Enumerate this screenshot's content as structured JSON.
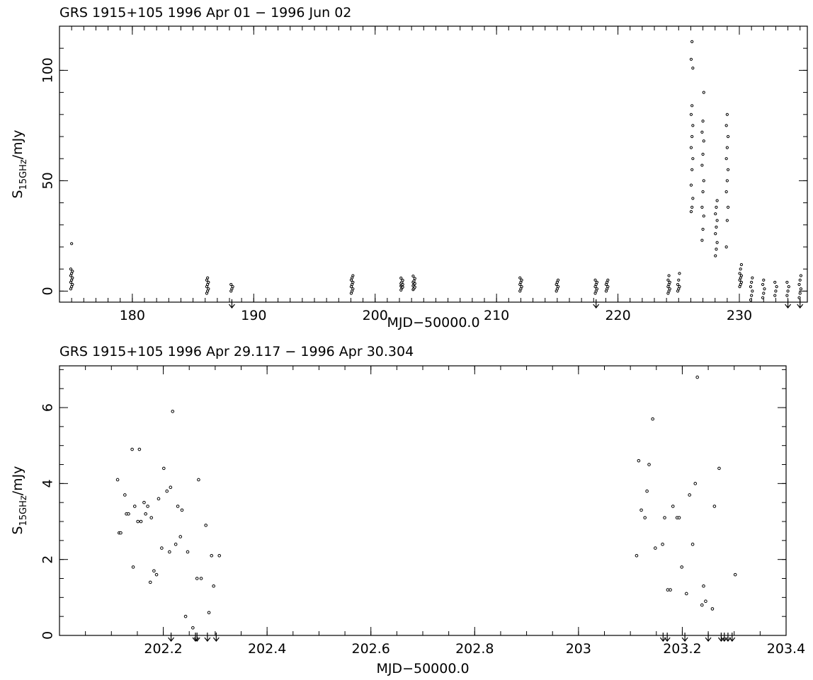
{
  "chart_data": [
    {
      "type": "scatter",
      "title": "GRS 1915+105  1996 Apr 01 − 1996 Jun 02",
      "xlabel": "MJD−50000.0",
      "ylabel_main": "S",
      "ylabel_sub": "15GHz",
      "ylabel_unit": "/mJy",
      "xlim": [
        174,
        235.6
      ],
      "ylim": [
        -5,
        120
      ],
      "xticks": [
        180,
        190,
        200,
        210,
        220,
        230
      ],
      "xticklabels": [
        "180",
        "190",
        "200",
        "210",
        "220",
        "230"
      ],
      "yticks": [
        0,
        50,
        100
      ],
      "yticklabels": [
        "0",
        "50",
        "100"
      ],
      "clusters": [
        {
          "x": 175.0,
          "values": [
            1,
            2,
            3,
            4,
            5,
            6,
            7,
            8,
            9,
            10,
            21.5
          ]
        },
        {
          "x": 186.2,
          "values": [
            -1,
            0,
            1,
            2,
            3,
            4,
            5,
            6
          ]
        },
        {
          "x": 188.2,
          "values": [
            0,
            1,
            2,
            3
          ]
        },
        {
          "x": 198.1,
          "values": [
            -1,
            0,
            1,
            2,
            3,
            4,
            5,
            6,
            7
          ]
        },
        {
          "x": 202.2,
          "values": [
            0.5,
            1.4,
            1.8,
            2.3,
            2.7,
            3.0,
            3.4,
            4.1,
            4.9,
            5.9
          ]
        },
        {
          "x": 203.2,
          "values": [
            0.7,
            1.2,
            1.8,
            2.4,
            3.1,
            3.4,
            4.0,
            4.6,
            5.7,
            6.8
          ]
        },
        {
          "x": 212.0,
          "values": [
            0,
            1,
            2,
            3,
            4,
            5,
            6
          ]
        },
        {
          "x": 215.0,
          "values": [
            0,
            1,
            2,
            3,
            4,
            5
          ]
        },
        {
          "x": 218.2,
          "values": [
            -1,
            0,
            1,
            2,
            3,
            4,
            5
          ]
        },
        {
          "x": 219.1,
          "values": [
            0,
            1,
            2,
            3,
            4,
            5
          ]
        },
        {
          "x": 224.2,
          "values": [
            -1,
            0,
            1,
            2,
            3,
            4,
            5,
            7
          ]
        },
        {
          "x": 225.0,
          "values": [
            0,
            1,
            2,
            3,
            5,
            8
          ]
        },
        {
          "x": 226.1,
          "values": [
            36,
            38,
            42,
            48,
            55,
            60,
            65,
            70,
            75,
            80,
            84,
            101,
            105,
            113
          ]
        },
        {
          "x": 227.0,
          "values": [
            23,
            28,
            34,
            38,
            45,
            50,
            57,
            62,
            68,
            72,
            77,
            90
          ]
        },
        {
          "x": 228.1,
          "values": [
            16,
            19,
            22,
            26,
            29,
            32,
            35,
            38,
            41
          ]
        },
        {
          "x": 229.0,
          "values": [
            20,
            32,
            38,
            45,
            50,
            55,
            60,
            65,
            70,
            75,
            80
          ]
        },
        {
          "x": 230.1,
          "values": [
            2,
            3,
            4,
            5,
            6,
            7,
            8,
            10,
            12
          ]
        },
        {
          "x": 231.0,
          "values": [
            -4,
            -2,
            0,
            2,
            4,
            6
          ]
        },
        {
          "x": 232.0,
          "values": [
            -3,
            -1,
            1,
            3,
            5
          ]
        },
        {
          "x": 233.0,
          "values": [
            -2,
            0,
            2,
            4
          ]
        },
        {
          "x": 234.0,
          "values": [
            -2,
            0,
            2,
            4
          ]
        },
        {
          "x": 235.0,
          "values": [
            -3,
            -1,
            1,
            3,
            5,
            7
          ]
        }
      ],
      "upper_limits_x": [
        188.2,
        218.2,
        234.0,
        235.0
      ]
    },
    {
      "type": "scatter",
      "title": "GRS 1915+105  1996 Apr 29.117 − 1996 Apr 30.304",
      "xlabel": "MJD−50000.0",
      "ylabel_main": "S",
      "ylabel_sub": "15GHz",
      "ylabel_unit": "/mJy",
      "xlim": [
        202.0,
        203.4
      ],
      "ylim": [
        0,
        7.1
      ],
      "xticks": [
        202.2,
        202.4,
        202.6,
        202.8,
        203.0,
        203.2,
        203.4
      ],
      "xticklabels": [
        "202.2",
        "202.4",
        "202.6",
        "202.8",
        "203",
        "203.2",
        "203.4"
      ],
      "yticks": [
        0,
        2,
        4,
        6
      ],
      "yticklabels": [
        "0",
        "2",
        "4",
        "6"
      ],
      "points": [
        [
          202.112,
          4.1
        ],
        [
          202.115,
          2.7
        ],
        [
          202.118,
          2.7
        ],
        [
          202.126,
          3.7
        ],
        [
          202.129,
          3.2
        ],
        [
          202.133,
          3.2
        ],
        [
          202.14,
          4.9
        ],
        [
          202.142,
          1.8
        ],
        [
          202.145,
          3.4
        ],
        [
          202.151,
          3.0
        ],
        [
          202.154,
          4.9
        ],
        [
          202.157,
          3.0
        ],
        [
          202.163,
          3.5
        ],
        [
          202.166,
          3.2
        ],
        [
          202.17,
          3.4
        ],
        [
          202.175,
          1.4
        ],
        [
          202.177,
          3.1
        ],
        [
          202.182,
          1.7
        ],
        [
          202.187,
          1.6
        ],
        [
          202.191,
          3.6
        ],
        [
          202.197,
          2.3
        ],
        [
          202.201,
          4.4
        ],
        [
          202.207,
          3.8
        ],
        [
          202.212,
          2.2
        ],
        [
          202.214,
          3.9
        ],
        [
          202.218,
          5.9
        ],
        [
          202.224,
          2.4
        ],
        [
          202.228,
          3.4
        ],
        [
          202.233,
          2.6
        ],
        [
          202.236,
          3.3
        ],
        [
          202.243,
          0.5
        ],
        [
          202.247,
          2.2
        ],
        [
          202.257,
          0.2
        ],
        [
          202.265,
          1.5
        ],
        [
          202.268,
          4.1
        ],
        [
          202.273,
          1.5
        ],
        [
          202.282,
          2.9
        ],
        [
          202.288,
          0.6
        ],
        [
          202.293,
          2.1
        ],
        [
          202.297,
          1.3
        ],
        [
          202.308,
          2.1
        ],
        [
          203.112,
          2.1
        ],
        [
          203.116,
          4.6
        ],
        [
          203.121,
          3.3
        ],
        [
          203.128,
          3.1
        ],
        [
          203.132,
          3.8
        ],
        [
          203.136,
          4.5
        ],
        [
          203.143,
          5.7
        ],
        [
          203.148,
          2.3
        ],
        [
          203.162,
          2.4
        ],
        [
          203.166,
          3.1
        ],
        [
          203.172,
          1.2
        ],
        [
          203.177,
          1.2
        ],
        [
          203.182,
          3.4
        ],
        [
          203.19,
          3.1
        ],
        [
          203.194,
          3.1
        ],
        [
          203.199,
          1.8
        ],
        [
          203.208,
          1.1
        ],
        [
          203.214,
          3.7
        ],
        [
          203.22,
          2.4
        ],
        [
          203.225,
          4.0
        ],
        [
          203.229,
          6.8
        ],
        [
          203.238,
          0.8
        ],
        [
          203.241,
          1.3
        ],
        [
          203.245,
          0.9
        ],
        [
          203.258,
          0.7
        ],
        [
          203.262,
          3.4
        ],
        [
          203.271,
          4.4
        ],
        [
          203.302,
          1.6
        ]
      ],
      "upper_limits_x": [
        202.215,
        202.262,
        202.265,
        202.285,
        202.302,
        203.163,
        203.171,
        203.205,
        203.25,
        203.275,
        203.281,
        203.288,
        203.296
      ]
    }
  ]
}
